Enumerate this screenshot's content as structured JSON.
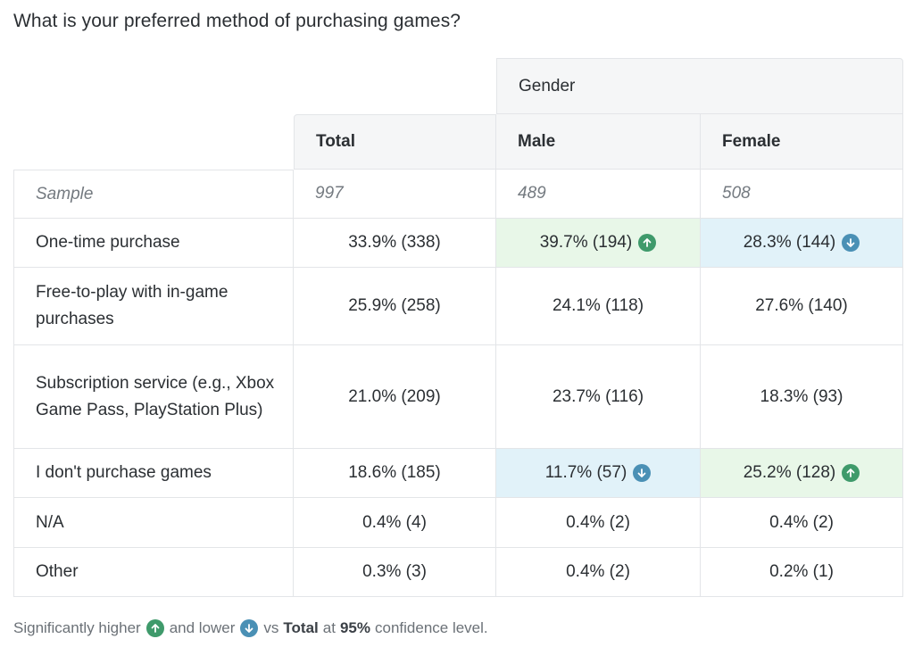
{
  "question": "What is your preferred method of purchasing games?",
  "colors": {
    "higher_fill": "#e8f7e8",
    "lower_fill": "#e1f2f9",
    "higher_icon": "#3f9a6b",
    "lower_icon": "#4a90b5"
  },
  "table": {
    "group_header": "Gender",
    "columns": [
      "Total",
      "Male",
      "Female"
    ],
    "sample": {
      "label": "Sample",
      "values": [
        "997",
        "489",
        "508"
      ]
    },
    "rows": [
      {
        "label": "One-time purchase",
        "values": [
          "33.9% (338)",
          "39.7% (194)",
          "28.3% (144)"
        ],
        "signif": [
          "",
          "up",
          "down"
        ]
      },
      {
        "label": "Free-to-play with in-game purchases",
        "values": [
          "25.9% (258)",
          "24.1% (118)",
          "27.6% (140)"
        ],
        "signif": [
          "",
          "",
          ""
        ]
      },
      {
        "label": "Subscription service (e.g., Xbox Game Pass, PlayStation Plus)",
        "values": [
          "21.0% (209)",
          "23.7% (116)",
          "18.3% (93)"
        ],
        "signif": [
          "",
          "",
          ""
        ]
      },
      {
        "label": "I don't purchase games",
        "values": [
          "18.6% (185)",
          "11.7% (57)",
          "25.2% (128)"
        ],
        "signif": [
          "",
          "down",
          "up"
        ]
      },
      {
        "label": "N/A",
        "values": [
          "0.4% (4)",
          "0.4% (2)",
          "0.4% (2)"
        ],
        "signif": [
          "",
          "",
          ""
        ]
      },
      {
        "label": "Other",
        "values": [
          "0.3% (3)",
          "0.4% (2)",
          "0.2% (1)"
        ],
        "signif": [
          "",
          "",
          ""
        ]
      }
    ]
  },
  "footer": {
    "part1": "Significantly higher",
    "part2": "and lower",
    "part3": "vs",
    "total_word": "Total",
    "part4": "at",
    "confidence": "95%",
    "part5": "confidence level."
  }
}
